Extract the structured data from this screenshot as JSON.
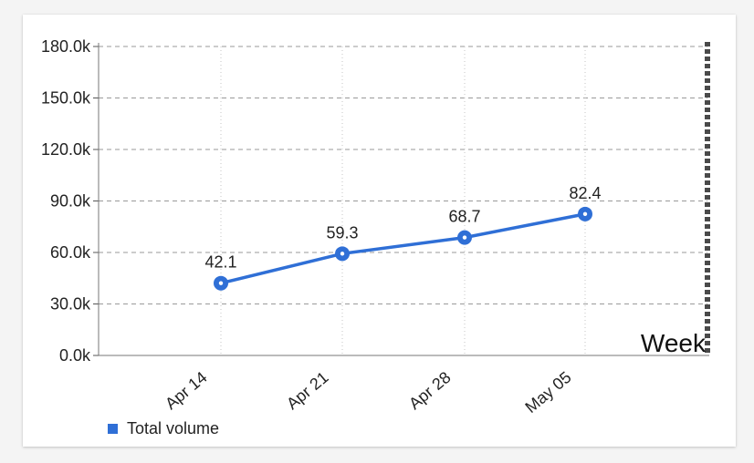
{
  "chart_data": {
    "type": "line",
    "categories": [
      "Apr 14",
      "Apr 21",
      "Apr 28",
      "May 05"
    ],
    "series": [
      {
        "name": "Total volume",
        "values": [
          42.1,
          59.3,
          68.7,
          82.4
        ],
        "data_labels": [
          "42.1",
          "59.3",
          "68.7",
          "82.4"
        ],
        "color": "#2f6fd6"
      }
    ],
    "xlabel": "Week",
    "ylabel": "",
    "ylim": [
      0,
      180
    ],
    "yticks": [
      0,
      30,
      60,
      90,
      120,
      150,
      180
    ],
    "ytick_labels": [
      "0.0k",
      "30.0k",
      "60.0k",
      "90.0k",
      "120.0k",
      "150.0k",
      "180.0k"
    ],
    "grid": true,
    "legend": "bottom-left"
  }
}
